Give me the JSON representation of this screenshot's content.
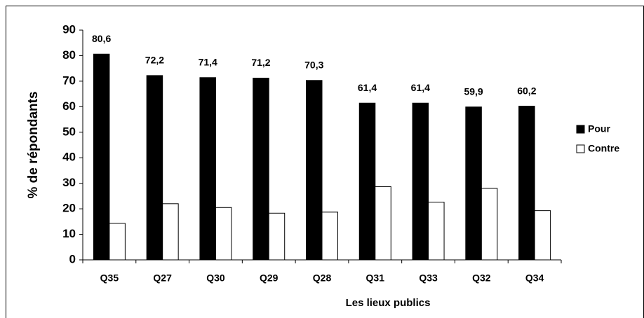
{
  "chart_data": {
    "type": "bar",
    "x_label": "Les lieux publics",
    "y_label": "% de répondants",
    "categories": [
      "Q35",
      "Q27",
      "Q30",
      "Q29",
      "Q28",
      "Q31",
      "Q33",
      "Q32",
      "Q34"
    ],
    "series": [
      {
        "name": "Pour",
        "color": "#000000",
        "values": [
          80.6,
          72.2,
          71.4,
          71.2,
          70.3,
          61.4,
          61.4,
          59.9,
          60.2
        ],
        "value_labels": [
          "80,6",
          "72,2",
          "71,4",
          "71,2",
          "70,3",
          "61,4",
          "61,4",
          "59,9",
          "60,2"
        ]
      },
      {
        "name": "Contre",
        "color": "#ffffff",
        "values": [
          14.3,
          22,
          20.5,
          18.3,
          18.7,
          28.7,
          22.6,
          28,
          19.3
        ]
      }
    ],
    "ylim": [
      0,
      90
    ],
    "yticks": [
      0,
      10,
      20,
      30,
      40,
      50,
      60,
      70,
      80,
      90
    ],
    "legend": "right"
  }
}
